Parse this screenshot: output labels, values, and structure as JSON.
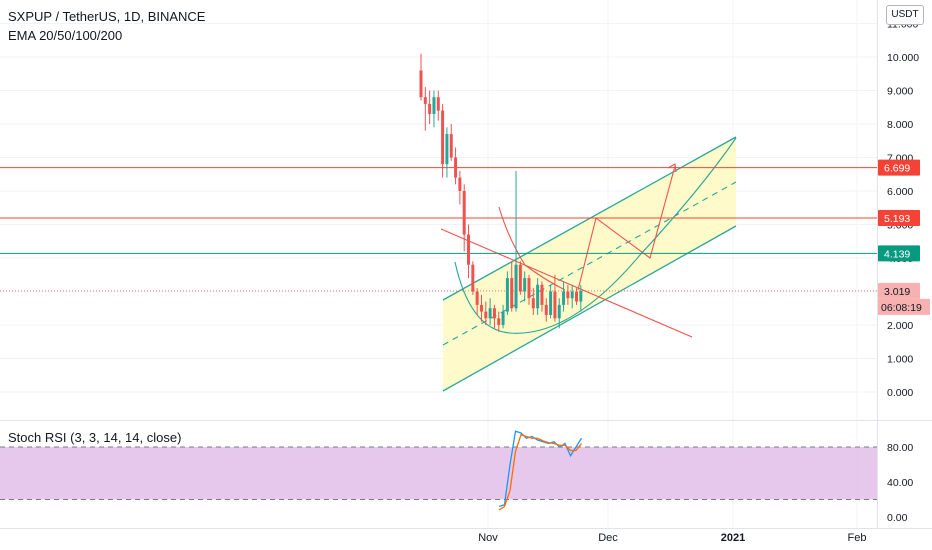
{
  "header": {
    "symbol_line": "SXPUP / TetherUS, 1D, BINANCE",
    "indicator_line": "EMA 20/50/100/200",
    "currency_button": "USDT"
  },
  "stoch_panel": {
    "title": "Stoch RSI (3, 3, 14, 14, close)"
  },
  "colors": {
    "bull": "#26a69a",
    "bear": "#ef5350",
    "channel_line": "#26a69a",
    "channel_fill": "#fff9c4",
    "resistance": "#f44336",
    "support": "#089981",
    "stoch_fill": "#e1bee7",
    "stoch_k": "#2196f3",
    "stoch_d": "#ff6d00"
  },
  "chart_data": [
    {
      "type": "candlestick",
      "title": "SXPUP / TetherUS, 1D, BINANCE",
      "y_ticks": [
        "0.000",
        "1.000",
        "2.000",
        "3.000",
        "4.000",
        "5.000",
        "6.000",
        "7.000",
        "8.000",
        "9.000",
        "10.000",
        "11.000"
      ],
      "ylim": [
        -0.4,
        11.4
      ],
      "x_ticks": [
        "Nov",
        "Dec",
        "2021",
        "Feb"
      ],
      "price_labels": [
        {
          "value": 6.699,
          "label": "6.699",
          "kind": "resistance"
        },
        {
          "value": 5.193,
          "label": "5.193",
          "kind": "resistance"
        },
        {
          "value": 4.139,
          "label": "4.139",
          "kind": "support"
        },
        {
          "value": 3.019,
          "label": "3.019",
          "kind": "last"
        }
      ],
      "countdown": "06:08:19",
      "candles": [
        {
          "o": 9.6,
          "h": 10.1,
          "l": 8.7,
          "c": 8.8
        },
        {
          "o": 8.8,
          "h": 9.1,
          "l": 7.8,
          "c": 8.6
        },
        {
          "o": 8.6,
          "h": 9.0,
          "l": 8.0,
          "c": 8.3
        },
        {
          "o": 8.3,
          "h": 9.0,
          "l": 7.9,
          "c": 8.8
        },
        {
          "o": 8.8,
          "h": 9.0,
          "l": 8.1,
          "c": 8.4
        },
        {
          "o": 8.4,
          "h": 8.6,
          "l": 6.4,
          "c": 6.8
        },
        {
          "o": 6.8,
          "h": 7.9,
          "l": 6.4,
          "c": 7.7
        },
        {
          "o": 7.7,
          "h": 8.0,
          "l": 6.9,
          "c": 7.0
        },
        {
          "o": 7.0,
          "h": 7.3,
          "l": 6.2,
          "c": 6.4
        },
        {
          "o": 6.4,
          "h": 6.6,
          "l": 5.6,
          "c": 6.0
        },
        {
          "o": 6.0,
          "h": 6.2,
          "l": 4.2,
          "c": 4.7
        },
        {
          "o": 4.7,
          "h": 5.0,
          "l": 3.4,
          "c": 3.8
        },
        {
          "o": 3.8,
          "h": 3.9,
          "l": 2.9,
          "c": 3.0
        },
        {
          "o": 3.0,
          "h": 3.1,
          "l": 2.3,
          "c": 2.6
        },
        {
          "o": 2.6,
          "h": 2.9,
          "l": 2.1,
          "c": 2.4
        },
        {
          "o": 2.4,
          "h": 2.7,
          "l": 2.0,
          "c": 2.2
        },
        {
          "o": 2.2,
          "h": 2.8,
          "l": 2.0,
          "c": 2.5
        },
        {
          "o": 2.5,
          "h": 2.6,
          "l": 1.9,
          "c": 2.2
        },
        {
          "o": 2.2,
          "h": 2.4,
          "l": 1.8,
          "c": 2.0
        },
        {
          "o": 2.0,
          "h": 2.6,
          "l": 1.9,
          "c": 2.4
        },
        {
          "o": 2.4,
          "h": 3.6,
          "l": 2.3,
          "c": 3.4
        },
        {
          "o": 3.4,
          "h": 3.9,
          "l": 2.4,
          "c": 2.5
        },
        {
          "o": 2.5,
          "h": 6.6,
          "l": 2.4,
          "c": 3.8
        },
        {
          "o": 3.8,
          "h": 3.9,
          "l": 2.9,
          "c": 3.0
        },
        {
          "o": 3.0,
          "h": 3.6,
          "l": 2.7,
          "c": 3.4
        },
        {
          "o": 3.4,
          "h": 3.5,
          "l": 2.6,
          "c": 2.8
        },
        {
          "o": 2.8,
          "h": 3.1,
          "l": 2.3,
          "c": 2.5
        },
        {
          "o": 2.5,
          "h": 3.4,
          "l": 2.3,
          "c": 3.2
        },
        {
          "o": 3.2,
          "h": 3.3,
          "l": 2.4,
          "c": 2.6
        },
        {
          "o": 2.6,
          "h": 2.8,
          "l": 2.1,
          "c": 2.3
        },
        {
          "o": 2.3,
          "h": 3.2,
          "l": 2.2,
          "c": 3.0
        },
        {
          "o": 3.0,
          "h": 3.5,
          "l": 2.1,
          "c": 2.2
        },
        {
          "o": 2.2,
          "h": 2.8,
          "l": 1.9,
          "c": 2.6
        },
        {
          "o": 2.6,
          "h": 3.3,
          "l": 2.4,
          "c": 3.0
        },
        {
          "o": 3.0,
          "h": 3.2,
          "l": 2.6,
          "c": 2.8
        },
        {
          "o": 2.8,
          "h": 3.2,
          "l": 2.5,
          "c": 3.0
        },
        {
          "o": 3.0,
          "h": 3.1,
          "l": 2.6,
          "c": 2.7
        },
        {
          "o": 2.7,
          "h": 3.2,
          "l": 2.4,
          "c": 3.019
        }
      ]
    },
    {
      "type": "line",
      "title": "Stoch RSI (3, 3, 14, 14, close)",
      "y_ticks": [
        "0.00",
        "40.00",
        "80.00"
      ],
      "ylim": [
        -6,
        106
      ],
      "bands": [
        20,
        80
      ],
      "series": [
        {
          "key": "k",
          "values": [
            12,
            14,
            60,
            98,
            96,
            90,
            92,
            88,
            86,
            84,
            86,
            80,
            84,
            70,
            80,
            90
          ]
        },
        {
          "key": "d",
          "values": [
            8,
            12,
            30,
            75,
            94,
            92,
            90,
            90,
            87,
            85,
            84,
            82,
            82,
            76,
            76,
            84
          ]
        }
      ]
    }
  ]
}
